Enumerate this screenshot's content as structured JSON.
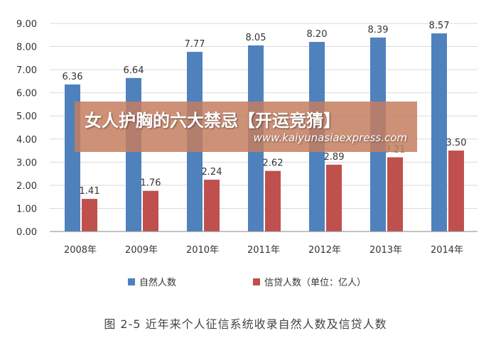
{
  "chart_data": {
    "type": "bar",
    "categories": [
      "2008年",
      "2009年",
      "2010年",
      "2011年",
      "2012年",
      "2013年",
      "2014年"
    ],
    "series": [
      {
        "name": "自然人数",
        "values": [
          6.36,
          6.64,
          7.77,
          8.05,
          8.2,
          8.39,
          8.57
        ],
        "labels": [
          "6.36",
          "6.64",
          "7.77",
          "8.05",
          "8.20",
          "8.39",
          "8.57"
        ],
        "color": "#4f81bd"
      },
      {
        "name": "信贷人数（单位：亿人）",
        "values": [
          1.41,
          1.76,
          2.24,
          2.62,
          2.89,
          3.21,
          3.5
        ],
        "labels": [
          "1.41",
          "1.76",
          "2.24",
          "2.62",
          "2.89",
          "3.21",
          "3.50"
        ],
        "color": "#c0504d"
      }
    ],
    "yticks": [
      "0.00",
      "1.00",
      "2.00",
      "3.00",
      "4.00",
      "5.00",
      "6.00",
      "7.00",
      "8.00",
      "9.00"
    ],
    "ylim": [
      0,
      9
    ],
    "grid": true,
    "legend_position": "bottom"
  },
  "caption": "图 2-5   近年来个人征信系统收录自然人数及信贷人数",
  "watermark": {
    "title": "女人护胸的六大禁忌【开运竞猜】",
    "url": "www.kaiyunasiaexpress.com"
  },
  "colors": {
    "gridline": "#d9d9d9",
    "axis": "#868686"
  }
}
